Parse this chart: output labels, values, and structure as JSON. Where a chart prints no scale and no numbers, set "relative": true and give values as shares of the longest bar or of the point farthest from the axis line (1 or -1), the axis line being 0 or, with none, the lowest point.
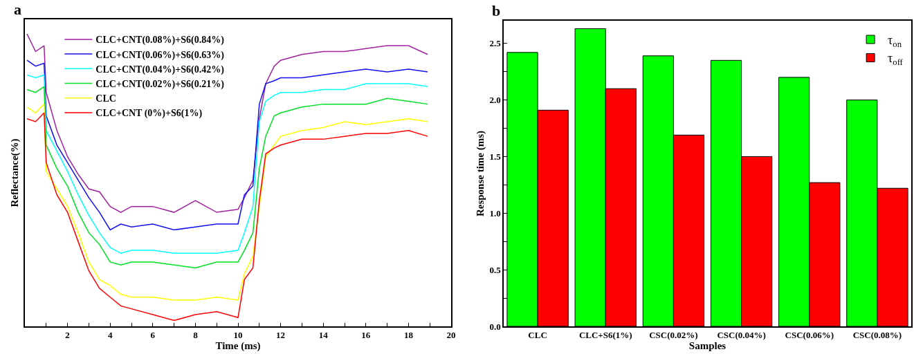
{
  "chart_data": [
    {
      "type": "line",
      "relative": true,
      "xlabel": "Time (ms)",
      "ylabel": "Reflectance(%)",
      "annotations": [
        "a"
      ],
      "legend": "top left",
      "xlim": [
        0,
        20
      ],
      "xticks": [
        {
          "value": 1,
          "label": null
        },
        2,
        {
          "value": 3,
          "label": null
        },
        4,
        {
          "value": 5,
          "label": null
        },
        6,
        {
          "value": 7,
          "label": null
        },
        8,
        {
          "value": 9,
          "label": null
        },
        10,
        {
          "value": 11,
          "label": null
        },
        12,
        {
          "value": 13,
          "label": null
        },
        14,
        {
          "value": 15,
          "label": null
        },
        16,
        {
          "value": 17,
          "label": null
        },
        18,
        {
          "value": 19,
          "label": null
        },
        20
      ],
      "x": [
        0.1,
        0.5,
        0.9,
        1.0,
        1.5,
        2,
        2.5,
        3,
        3.5,
        4,
        4.5,
        5,
        6,
        7,
        8,
        9,
        10,
        10.3,
        10.7,
        11,
        11.3,
        11.7,
        12,
        13,
        14,
        15,
        16,
        17,
        18,
        18.9
      ],
      "series": [
        {
          "name": "CLC+CNT(0.08%)+S6(0.84%)",
          "color": "#a020a0",
          "values": [
            1.0,
            0.94,
            0.96,
            0.8,
            0.67,
            0.58,
            0.52,
            0.47,
            0.46,
            0.41,
            0.39,
            0.41,
            0.41,
            0.39,
            0.43,
            0.39,
            0.4,
            0.44,
            0.5,
            0.71,
            0.83,
            0.89,
            0.91,
            0.93,
            0.94,
            0.94,
            0.95,
            0.96,
            0.96,
            0.93
          ]
        },
        {
          "name": "CLC+CNT(0.06%)+S6(0.63%)",
          "color": "#1010f0",
          "values": [
            0.91,
            0.89,
            0.9,
            0.72,
            0.62,
            0.56,
            0.5,
            0.44,
            0.39,
            0.33,
            0.35,
            0.34,
            0.35,
            0.33,
            0.34,
            0.35,
            0.35,
            0.45,
            0.48,
            0.76,
            0.83,
            0.84,
            0.85,
            0.85,
            0.86,
            0.87,
            0.88,
            0.87,
            0.88,
            0.87
          ]
        },
        {
          "name": "CLC+CNT(0.04%)+S6(0.42%)",
          "color": "#00ffff",
          "values": [
            0.86,
            0.85,
            0.86,
            0.67,
            0.6,
            0.53,
            0.45,
            0.38,
            0.32,
            0.27,
            0.25,
            0.26,
            0.26,
            0.25,
            0.25,
            0.25,
            0.26,
            0.32,
            0.41,
            0.7,
            0.77,
            0.79,
            0.8,
            0.8,
            0.81,
            0.81,
            0.83,
            0.83,
            0.83,
            0.82
          ]
        },
        {
          "name": "CLC+CNT(0.02%)+S6(0.21%)",
          "color": "#00e020",
          "values": [
            0.81,
            0.8,
            0.82,
            0.62,
            0.54,
            0.48,
            0.39,
            0.32,
            0.28,
            0.22,
            0.21,
            0.22,
            0.22,
            0.21,
            0.2,
            0.22,
            0.22,
            0.26,
            0.32,
            0.54,
            0.65,
            0.72,
            0.73,
            0.75,
            0.76,
            0.76,
            0.76,
            0.78,
            0.77,
            0.76
          ]
        },
        {
          "name": "CLC",
          "color": "#ffff00",
          "values": [
            0.75,
            0.73,
            0.76,
            0.53,
            0.47,
            0.41,
            0.32,
            0.22,
            0.16,
            0.14,
            0.11,
            0.1,
            0.1,
            0.09,
            0.09,
            0.1,
            0.09,
            0.18,
            0.24,
            0.41,
            0.58,
            0.62,
            0.65,
            0.67,
            0.68,
            0.7,
            0.69,
            0.7,
            0.71,
            0.7
          ]
        },
        {
          "name": "CLC+CNT (0%)+S6(1%)",
          "color": "#ff0000",
          "values": [
            0.71,
            0.7,
            0.73,
            0.56,
            0.45,
            0.39,
            0.29,
            0.19,
            0.13,
            0.1,
            0.07,
            0.06,
            0.04,
            0.02,
            0.04,
            0.05,
            0.03,
            0.16,
            0.2,
            0.43,
            0.59,
            0.61,
            0.62,
            0.64,
            0.64,
            0.65,
            0.66,
            0.66,
            0.67,
            0.65
          ]
        }
      ]
    },
    {
      "type": "bar",
      "xlabel": "Samples",
      "ylabel": "Response time (ms)",
      "annotations": [
        "b"
      ],
      "legend": "top right",
      "ylim": [
        0,
        2.7
      ],
      "yticks": [
        {
          "value": 0,
          "label": "0.0"
        },
        {
          "value": 0.25,
          "label": null
        },
        {
          "value": 0.5,
          "label": "0.5"
        },
        {
          "value": 0.75,
          "label": null
        },
        {
          "value": 1.0,
          "label": "1.0"
        },
        {
          "value": 1.25,
          "label": null
        },
        1.5,
        {
          "value": 1.75,
          "label": null
        },
        {
          "value": 2.0,
          "label": "2.0"
        },
        {
          "value": 2.25,
          "label": null
        },
        2.5
      ],
      "categories": [
        "CLC",
        "CLC+S6(1%)",
        "CSC(0.02%)",
        "CSC(0.04%)",
        "CSC(0.06%)",
        "CSC(0.08%)"
      ],
      "series": [
        {
          "name": "τ$_{on}$",
          "color": "#00ff00",
          "values": [
            2.42,
            2.63,
            2.39,
            2.35,
            2.2,
            2.0
          ]
        },
        {
          "name": "τ$_{off}$",
          "color": "#ff0000",
          "values": [
            1.91,
            2.1,
            1.69,
            1.5,
            1.27,
            1.22
          ]
        }
      ]
    }
  ]
}
